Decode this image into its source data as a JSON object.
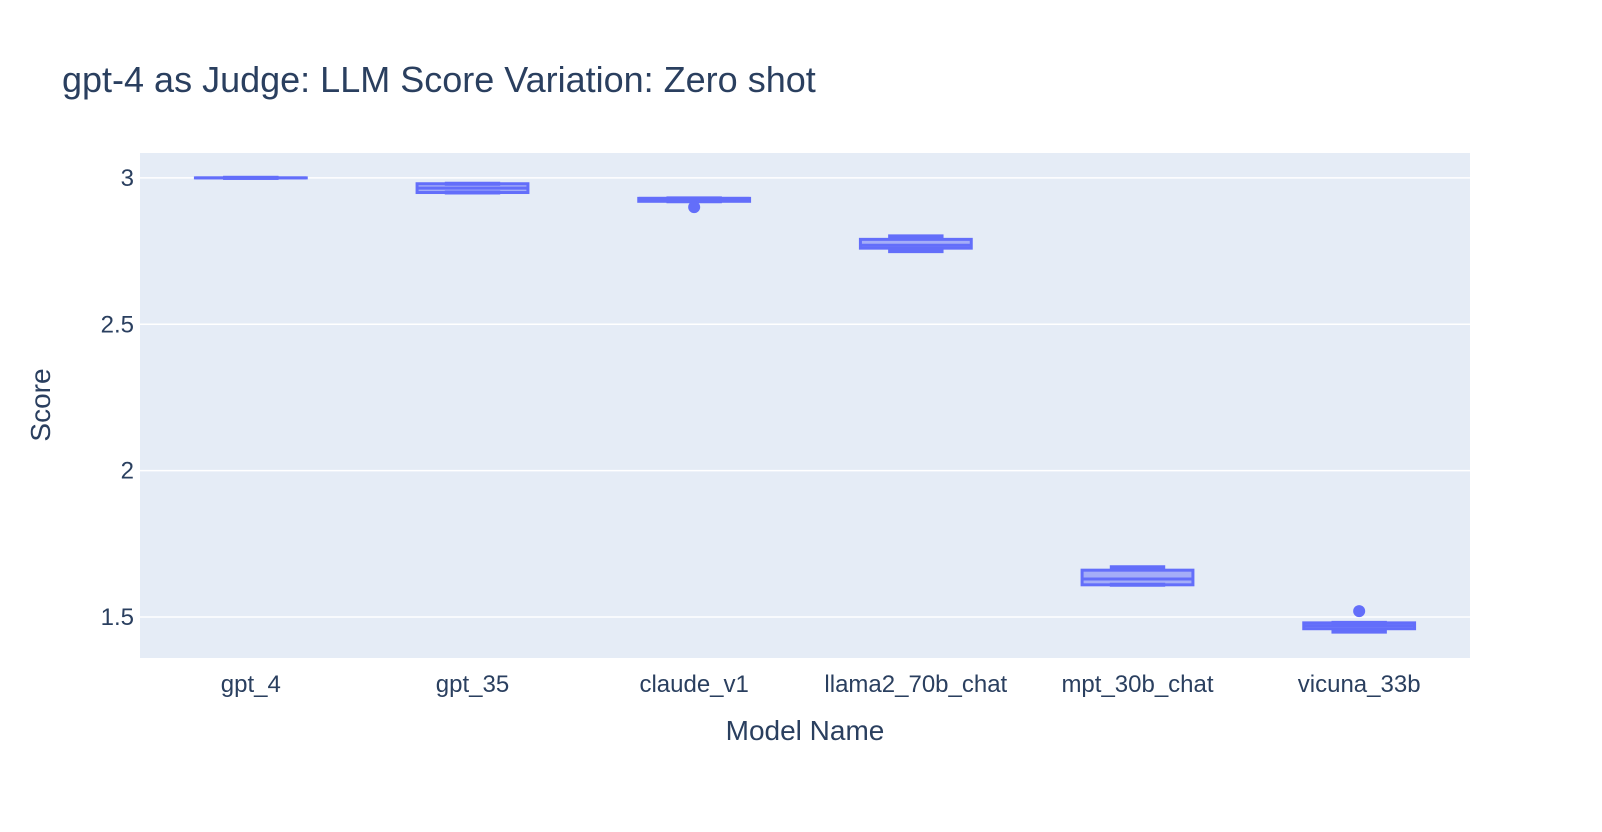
{
  "chart_data": {
    "type": "box",
    "title": "gpt-4 as Judge: LLM Score Variation: Zero shot",
    "xlabel": "Model Name",
    "ylabel": "Score",
    "ylim": [
      1.36,
      3.085
    ],
    "yticks": [
      1.5,
      2,
      2.5,
      3
    ],
    "ytick_labels": [
      "1.5",
      "2",
      "2.5",
      "3"
    ],
    "grid": true,
    "colors": {
      "box": "#636efa",
      "plot_bg": "#e5ecf6",
      "paper_bg": "#ffffff",
      "text": "#2a3f5f"
    },
    "categories": [
      "gpt_4",
      "gpt_35",
      "claude_v1",
      "llama2_70b_chat",
      "mpt_30b_chat",
      "vicuna_33b"
    ],
    "series": [
      {
        "boxes": [
          {
            "min": 3.0,
            "q1": 3.0,
            "median": 3.0,
            "q3": 3.0,
            "max": 3.0,
            "outliers": []
          },
          {
            "min": 2.95,
            "q1": 2.95,
            "median": 2.965,
            "q3": 2.98,
            "max": 2.98,
            "outliers": []
          },
          {
            "min": 2.92,
            "q1": 2.92,
            "median": 2.93,
            "q3": 2.93,
            "max": 2.93,
            "outliers": [
              2.9
            ]
          },
          {
            "min": 2.75,
            "q1": 2.76,
            "median": 2.77,
            "q3": 2.79,
            "max": 2.8,
            "outliers": []
          },
          {
            "min": 1.61,
            "q1": 1.61,
            "median": 1.63,
            "q3": 1.66,
            "max": 1.67,
            "outliers": []
          },
          {
            "min": 1.45,
            "q1": 1.46,
            "median": 1.47,
            "q3": 1.48,
            "max": 1.48,
            "outliers": [
              1.52
            ]
          }
        ]
      }
    ]
  }
}
